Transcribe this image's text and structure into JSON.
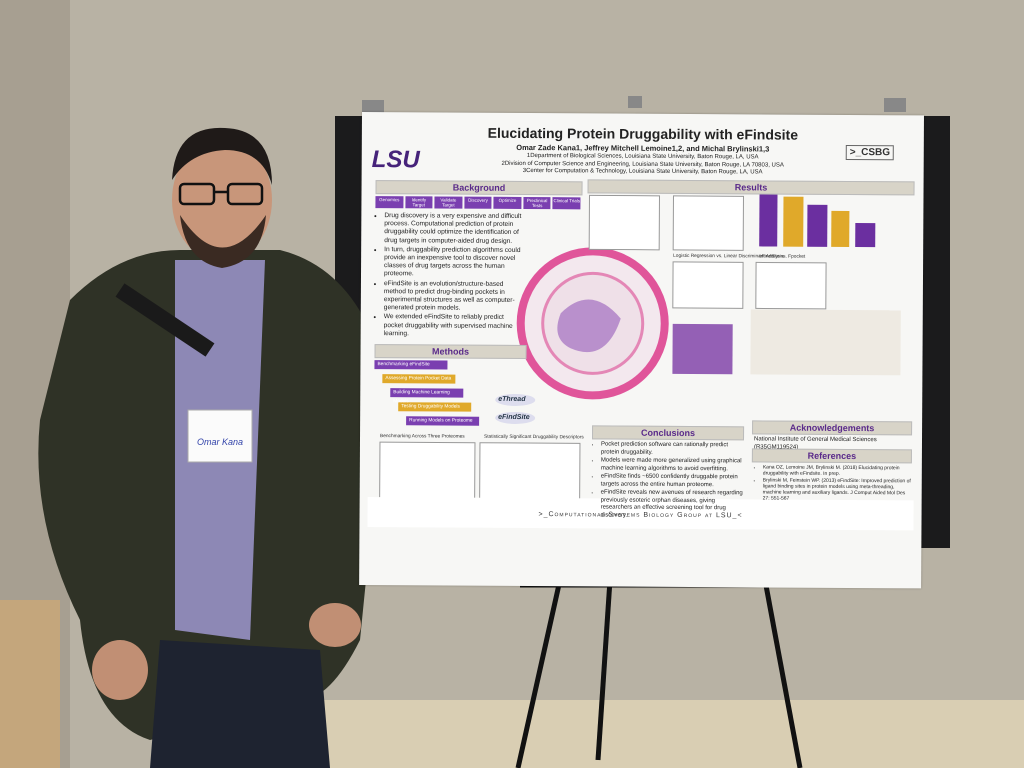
{
  "poster": {
    "logo": "LSU",
    "lab_logo": ">_CSBG",
    "title": "Elucidating Protein Druggability with eFindsite",
    "authors": "Omar Zade Kana1, Jeffrey Mitchell Lemoine1,2, and Michal Brylinski1,3",
    "affiliations": [
      "1Department of Biological Sciences, Louisiana State University, Baton Rouge, LA, USA",
      "2Division of Computer Science and Engineering, Louisiana State University, Baton Rouge, LA 70803, USA",
      "3Center for Computation & Technology, Louisiana State University, Baton Rouge, LA, USA"
    ],
    "background": {
      "heading": "Background",
      "steps": [
        "Genomics",
        "Identify Target",
        "Validate Target",
        "Discovery",
        "Optimize",
        "Preclinical Tests",
        "Clinical Trials"
      ],
      "bullets": [
        "Drug discovery is a very expensive and difficult process. Computational prediction of protein druggability could optimize the identification of drug targets in computer-aided drug design.",
        "In turn, druggability prediction algorithms could provide an inexpensive tool to discover novel classes of drug targets across the human proteome.",
        "eFindSite is an evolution/structure-based method to predict drug-binding pockets in experimental structures as well as computer-generated protein models.",
        "We extended eFindSite to reliably predict pocket druggability with supervised machine learning."
      ]
    },
    "methods": {
      "heading": "Methods",
      "steps": [
        "Benchmarking eFindSite",
        "Assessing Protein Pocket Data",
        "Building Machine Learning Models",
        "Testing Druggability Models",
        "Running Models on Proteome"
      ],
      "tools": [
        "eThread",
        "eFindSite"
      ],
      "plots": [
        "Benchmarking Across Three Proteomes",
        "Statistically Significant Druggability Descriptors"
      ]
    },
    "results": {
      "heading": "Results",
      "plots": [
        "Logistic Regression vs. Linear Discriminant Analysis",
        "eFindSite vs. Fpocket"
      ]
    },
    "conclusions": {
      "heading": "Conclusions",
      "bullets": [
        "Pocket prediction software can rationally predict protein druggability.",
        "Models were made more generalized using graphical machine learning algorithms to avoid overfitting.",
        "eFindSite finds ~6500 confidently druggable protein targets across the entire human proteome.",
        "eFindSite reveals new avenues of research regarding previously esoteric orphan diseases, giving researchers an effective screening tool for drug discovery."
      ]
    },
    "acknowledgements": {
      "heading": "Acknowledgements",
      "text": "National Institute of General Medical Sciences (R35GM119524)"
    },
    "references": {
      "heading": "References",
      "items": [
        "Kana OZ, Lemoine JM, Brylinski M. (2018) Elucidating protein druggability with eFindsite. In prep.",
        "Brylinski M, Feinstein WP. (2013) eFindSite: Improved prediction of ligand binding sites in protein models using meta-threading, machine learning and auxiliary ligands. J Comput Aided Mol Des 27: 551-567"
      ]
    },
    "footer": ">_Computational Systems Biology Group at LSU_<"
  },
  "name_tag": "Omar Kana"
}
